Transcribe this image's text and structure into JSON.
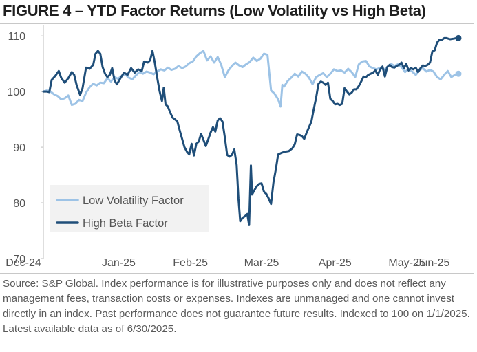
{
  "title": "FIGURE 4 – YTD Factor Returns (Low Volatility vs High Beta)",
  "source_note": "Source: S&P Global. Index performance is for illustrative purposes only and does not reflect any management fees, transaction costs or expenses. Indexes are unmanaged and one cannot invest directly in an index. Past performance does not guarantee future results. Indexed to 100 on 1/1/2025. Latest available data as of 6/30/2025.",
  "chart_data": {
    "type": "line",
    "title": "FIGURE 4 – YTD Factor Returns (Low Volatility vs High Beta)",
    "xlabel": "",
    "ylabel": "",
    "x_domain": [
      0,
      7
    ],
    "x_ticks": [
      {
        "label": "Dec-24",
        "value": 0
      },
      {
        "label": "Jan-25",
        "value": 1.27
      },
      {
        "label": "Feb-25",
        "value": 2.48
      },
      {
        "label": "Mar-25",
        "value": 3.68
      },
      {
        "label": "Apr-25",
        "value": 4.92
      },
      {
        "label": "May-25",
        "value": 6.13
      },
      {
        "label": "Jun-25",
        "value": 7.0
      }
    ],
    "ylim": [
      70,
      112
    ],
    "y_ticks": [
      70,
      80,
      90,
      100,
      110
    ],
    "gridlines": false,
    "legend_position": "bottom-left",
    "series": [
      {
        "name": "Low Volatility Factor",
        "color": "#9dc3e6",
        "end_marker": true,
        "points": [
          [
            0.0,
            100.0
          ],
          [
            0.06,
            100.2
          ],
          [
            0.12,
            100.0
          ],
          [
            0.18,
            99.5
          ],
          [
            0.24,
            99.2
          ],
          [
            0.3,
            98.6
          ],
          [
            0.36,
            98.8
          ],
          [
            0.42,
            99.3
          ],
          [
            0.48,
            97.6
          ],
          [
            0.54,
            97.8
          ],
          [
            0.6,
            98.5
          ],
          [
            0.66,
            98.3
          ],
          [
            0.72,
            99.8
          ],
          [
            0.78,
            100.8
          ],
          [
            0.84,
            101.4
          ],
          [
            0.9,
            101.1
          ],
          [
            0.96,
            101.6
          ],
          [
            1.02,
            101.5
          ],
          [
            1.08,
            102.4
          ],
          [
            1.14,
            101.8
          ],
          [
            1.2,
            102.6
          ],
          [
            1.26,
            102.3
          ],
          [
            1.32,
            102.8
          ],
          [
            1.38,
            103.1
          ],
          [
            1.44,
            102.5
          ],
          [
            1.5,
            102.2
          ],
          [
            1.56,
            102.9
          ],
          [
            1.62,
            103.5
          ],
          [
            1.68,
            103.2
          ],
          [
            1.74,
            103.6
          ],
          [
            1.8,
            103.4
          ],
          [
            1.86,
            103.1
          ],
          [
            1.92,
            103.6
          ],
          [
            1.98,
            104.0
          ],
          [
            2.04,
            103.8
          ],
          [
            2.1,
            104.3
          ],
          [
            2.16,
            103.9
          ],
          [
            2.22,
            104.1
          ],
          [
            2.28,
            104.6
          ],
          [
            2.34,
            104.2
          ],
          [
            2.4,
            104.5
          ],
          [
            2.46,
            105.1
          ],
          [
            2.52,
            105.4
          ],
          [
            2.58,
            106.3
          ],
          [
            2.64,
            106.9
          ],
          [
            2.7,
            107.3
          ],
          [
            2.76,
            105.6
          ],
          [
            2.82,
            106.3
          ],
          [
            2.88,
            105.2
          ],
          [
            2.94,
            106.2
          ],
          [
            3.0,
            104.8
          ],
          [
            3.06,
            102.6
          ],
          [
            3.12,
            103.8
          ],
          [
            3.18,
            104.6
          ],
          [
            3.24,
            105.2
          ],
          [
            3.3,
            104.7
          ],
          [
            3.36,
            104.4
          ],
          [
            3.42,
            104.9
          ],
          [
            3.48,
            105.3
          ],
          [
            3.54,
            106.1
          ],
          [
            3.6,
            105.5
          ],
          [
            3.66,
            105.9
          ],
          [
            3.72,
            106.8
          ],
          [
            3.78,
            106.6
          ],
          [
            3.84,
            100.2
          ],
          [
            3.9,
            99.6
          ],
          [
            3.96,
            98.6
          ],
          [
            4.0,
            97.3
          ],
          [
            4.03,
            101.2
          ],
          [
            4.06,
            100.9
          ],
          [
            4.12,
            101.9
          ],
          [
            4.18,
            102.5
          ],
          [
            4.24,
            103.2
          ],
          [
            4.3,
            102.7
          ],
          [
            4.36,
            103.6
          ],
          [
            4.42,
            103.2
          ],
          [
            4.48,
            102.5
          ],
          [
            4.54,
            101.3
          ],
          [
            4.6,
            102.6
          ],
          [
            4.66,
            103.0
          ],
          [
            4.72,
            103.3
          ],
          [
            4.78,
            102.6
          ],
          [
            4.84,
            103.2
          ],
          [
            4.9,
            104.0
          ],
          [
            4.96,
            103.7
          ],
          [
            5.02,
            103.8
          ],
          [
            5.08,
            103.4
          ],
          [
            5.14,
            104.1
          ],
          [
            5.2,
            103.5
          ],
          [
            5.26,
            102.6
          ],
          [
            5.32,
            104.9
          ],
          [
            5.38,
            105.4
          ],
          [
            5.44,
            105.5
          ],
          [
            5.5,
            104.5
          ],
          [
            5.56,
            104.2
          ],
          [
            5.62,
            104.0
          ],
          [
            5.68,
            104.3
          ],
          [
            5.74,
            103.9
          ],
          [
            5.8,
            104.4
          ],
          [
            5.86,
            105.0
          ],
          [
            5.92,
            104.6
          ],
          [
            5.98,
            104.9
          ],
          [
            6.04,
            104.4
          ],
          [
            6.1,
            103.5
          ],
          [
            6.16,
            104.1
          ],
          [
            6.22,
            103.6
          ],
          [
            6.28,
            103.0
          ],
          [
            6.34,
            103.8
          ],
          [
            6.4,
            104.2
          ],
          [
            6.46,
            103.6
          ],
          [
            6.52,
            103.9
          ],
          [
            6.58,
            103.6
          ],
          [
            6.64,
            102.6
          ],
          [
            6.7,
            102.2
          ],
          [
            6.76,
            103.0
          ],
          [
            6.82,
            103.7
          ],
          [
            6.88,
            102.6
          ],
          [
            6.94,
            103.0
          ],
          [
            7.0,
            103.2
          ]
        ]
      },
      {
        "name": "High Beta Factor",
        "color": "#1f4e79",
        "end_marker": true,
        "points": [
          [
            0.0,
            100.0
          ],
          [
            0.06,
            100.0
          ],
          [
            0.1,
            99.9
          ],
          [
            0.14,
            102.1
          ],
          [
            0.2,
            102.8
          ],
          [
            0.26,
            103.7
          ],
          [
            0.3,
            102.5
          ],
          [
            0.36,
            101.6
          ],
          [
            0.42,
            102.4
          ],
          [
            0.48,
            103.5
          ],
          [
            0.52,
            103.0
          ],
          [
            0.56,
            101.2
          ],
          [
            0.62,
            99.4
          ],
          [
            0.66,
            100.6
          ],
          [
            0.72,
            104.3
          ],
          [
            0.78,
            104.1
          ],
          [
            0.84,
            104.8
          ],
          [
            0.88,
            106.8
          ],
          [
            0.92,
            107.3
          ],
          [
            0.96,
            106.8
          ],
          [
            1.0,
            104.4
          ],
          [
            1.04,
            103.2
          ],
          [
            1.08,
            102.6
          ],
          [
            1.12,
            103.0
          ],
          [
            1.16,
            104.2
          ],
          [
            1.2,
            102.0
          ],
          [
            1.24,
            101.3
          ],
          [
            1.3,
            102.4
          ],
          [
            1.36,
            103.4
          ],
          [
            1.42,
            103.0
          ],
          [
            1.48,
            104.2
          ],
          [
            1.54,
            103.4
          ],
          [
            1.6,
            104.0
          ],
          [
            1.66,
            103.7
          ],
          [
            1.7,
            105.4
          ],
          [
            1.76,
            105.2
          ],
          [
            1.8,
            105.6
          ],
          [
            1.84,
            107.3
          ],
          [
            1.88,
            105.2
          ],
          [
            1.92,
            102.5
          ],
          [
            1.96,
            100.1
          ],
          [
            2.0,
            98.3
          ],
          [
            2.03,
            100.7
          ],
          [
            2.06,
            97.7
          ],
          [
            2.1,
            97.3
          ],
          [
            2.14,
            96.2
          ],
          [
            2.18,
            95.3
          ],
          [
            2.22,
            95.0
          ],
          [
            2.26,
            94.6
          ],
          [
            2.3,
            93.0
          ],
          [
            2.34,
            91.5
          ],
          [
            2.38,
            90.0
          ],
          [
            2.42,
            89.2
          ],
          [
            2.46,
            88.7
          ],
          [
            2.5,
            90.6
          ],
          [
            2.54,
            88.5
          ],
          [
            2.58,
            90.6
          ],
          [
            2.62,
            91.0
          ],
          [
            2.66,
            92.4
          ],
          [
            2.7,
            91.3
          ],
          [
            2.74,
            90.2
          ],
          [
            2.78,
            91.4
          ],
          [
            2.82,
            92.6
          ],
          [
            2.86,
            93.6
          ],
          [
            2.9,
            92.8
          ],
          [
            2.94,
            94.8
          ],
          [
            2.98,
            95.2
          ],
          [
            3.02,
            94.6
          ],
          [
            3.06,
            91.8
          ],
          [
            3.1,
            88.6
          ],
          [
            3.14,
            88.3
          ],
          [
            3.18,
            88.6
          ],
          [
            3.22,
            89.6
          ],
          [
            3.26,
            86.8
          ],
          [
            3.29,
            80.8
          ],
          [
            3.32,
            76.7
          ],
          [
            3.36,
            77.3
          ],
          [
            3.4,
            77.6
          ],
          [
            3.44,
            78.0
          ],
          [
            3.47,
            76.0
          ],
          [
            3.5,
            86.7
          ],
          [
            3.52,
            81.5
          ],
          [
            3.56,
            82.3
          ],
          [
            3.6,
            83.0
          ],
          [
            3.64,
            83.4
          ],
          [
            3.68,
            83.5
          ],
          [
            3.72,
            82.0
          ],
          [
            3.76,
            81.6
          ],
          [
            3.8,
            80.8
          ],
          [
            3.84,
            79.8
          ],
          [
            3.88,
            83.6
          ],
          [
            3.92,
            86.0
          ],
          [
            3.96,
            88.7
          ],
          [
            4.02,
            89.0
          ],
          [
            4.08,
            89.2
          ],
          [
            4.14,
            89.3
          ],
          [
            4.2,
            89.8
          ],
          [
            4.24,
            90.5
          ],
          [
            4.28,
            92.3
          ],
          [
            4.32,
            92.2
          ],
          [
            4.36,
            92.0
          ],
          [
            4.4,
            91.5
          ],
          [
            4.44,
            92.6
          ],
          [
            4.48,
            93.6
          ],
          [
            4.52,
            94.6
          ],
          [
            4.56,
            96.8
          ],
          [
            4.6,
            98.9
          ],
          [
            4.64,
            101.4
          ],
          [
            4.68,
            101.8
          ],
          [
            4.72,
            101.6
          ],
          [
            4.76,
            101.2
          ],
          [
            4.8,
            101.6
          ],
          [
            4.84,
            98.7
          ],
          [
            4.88,
            98.3
          ],
          [
            4.92,
            97.7
          ],
          [
            4.96,
            97.8
          ],
          [
            5.0,
            97.6
          ],
          [
            5.04,
            97.8
          ],
          [
            5.08,
            100.6
          ],
          [
            5.12,
            100.0
          ],
          [
            5.16,
            99.5
          ],
          [
            5.2,
            99.8
          ],
          [
            5.24,
            100.4
          ],
          [
            5.28,
            100.4
          ],
          [
            5.32,
            101.0
          ],
          [
            5.36,
            101.8
          ],
          [
            5.4,
            102.7
          ],
          [
            5.44,
            102.6
          ],
          [
            5.48,
            103.0
          ],
          [
            5.52,
            103.2
          ],
          [
            5.56,
            103.4
          ],
          [
            5.6,
            103.8
          ],
          [
            5.64,
            103.0
          ],
          [
            5.68,
            104.0
          ],
          [
            5.72,
            104.5
          ],
          [
            5.76,
            102.7
          ],
          [
            5.8,
            104.4
          ],
          [
            5.84,
            104.8
          ],
          [
            5.88,
            104.4
          ],
          [
            5.92,
            104.3
          ],
          [
            5.96,
            104.6
          ],
          [
            6.0,
            104.8
          ],
          [
            6.04,
            105.2
          ],
          [
            6.08,
            104.2
          ],
          [
            6.12,
            105.0
          ],
          [
            6.16,
            103.8
          ],
          [
            6.2,
            104.2
          ],
          [
            6.24,
            104.0
          ],
          [
            6.28,
            104.3
          ],
          [
            6.32,
            103.5
          ],
          [
            6.36,
            104.2
          ],
          [
            6.4,
            104.7
          ],
          [
            6.44,
            104.6
          ],
          [
            6.48,
            104.8
          ],
          [
            6.52,
            105.2
          ],
          [
            6.56,
            107.2
          ],
          [
            6.6,
            107.4
          ],
          [
            6.64,
            108.8
          ],
          [
            6.68,
            109.3
          ],
          [
            6.72,
            109.3
          ],
          [
            6.76,
            109.6
          ],
          [
            6.8,
            109.6
          ],
          [
            6.86,
            109.4
          ],
          [
            6.92,
            109.5
          ],
          [
            6.96,
            109.6
          ],
          [
            7.0,
            109.6
          ]
        ]
      }
    ]
  }
}
